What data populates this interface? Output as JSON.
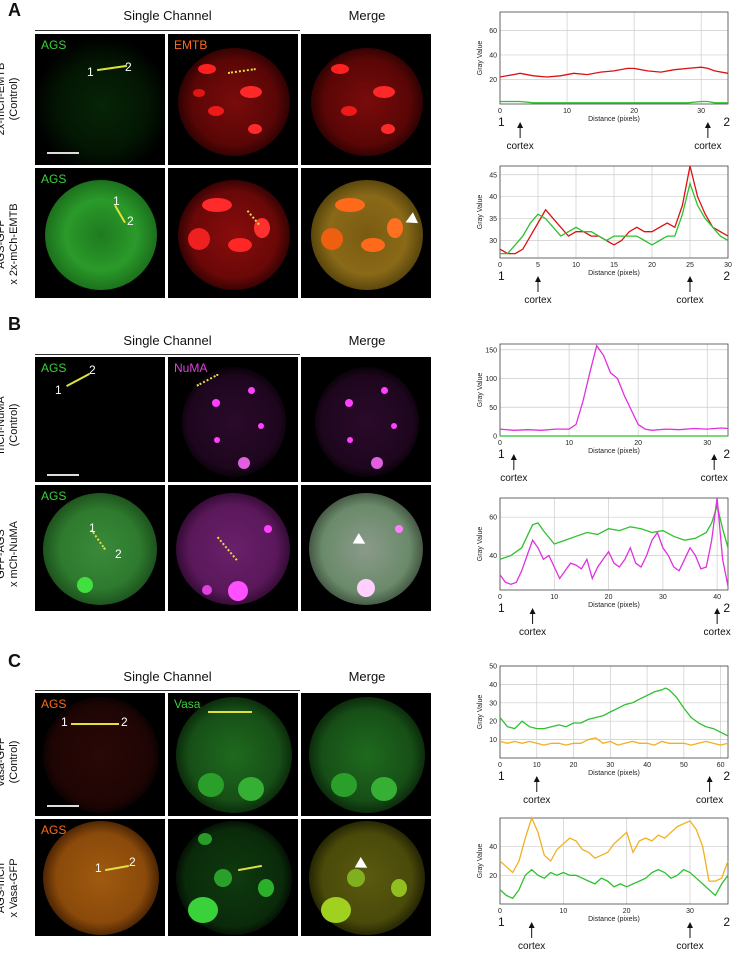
{
  "panels": [
    {
      "letter": "A",
      "single_channel": "Single Channel",
      "merge": "Merge",
      "channels": [
        {
          "label": "AGS",
          "color": "#3ad23a"
        },
        {
          "label": "EMTB",
          "color": "#ff6a1a"
        }
      ],
      "rows": [
        {
          "side_label": [
            "2x-mCh-EMTB",
            "(Control)"
          ]
        },
        {
          "side_label": [
            "AGS-GFP",
            "x 2x-mCh-EMTB"
          ]
        }
      ]
    },
    {
      "letter": "B",
      "single_channel": "Single Channel",
      "merge": "Merge",
      "channels": [
        {
          "label": "AGS",
          "color": "#3ad23a"
        },
        {
          "label": "NuMA",
          "color": "#e040e0"
        }
      ],
      "rows": [
        {
          "side_label": [
            "mCh-NuMA",
            "(Control)"
          ]
        },
        {
          "side_label": [
            "GFP-AGS",
            "x mCh-NuMA"
          ]
        }
      ]
    },
    {
      "letter": "C",
      "single_channel": "Single Channel",
      "merge": "Merge",
      "channels": [
        {
          "label": "AGS",
          "color": "#ff6a1a"
        },
        {
          "label": "Vasa",
          "color": "#3ad23a"
        }
      ],
      "rows": [
        {
          "side_label": [
            "Vasa-GFP",
            "(Control)"
          ]
        },
        {
          "side_label": [
            "AGS-mCh",
            "x Vasa-GFP"
          ]
        }
      ]
    }
  ],
  "line_endpoints": {
    "start": "1",
    "end": "2"
  },
  "cortex_label": "cortex",
  "chart_data": [
    {
      "type": "line",
      "ylabel": "Gray Value",
      "xlabel": "Distance (pixels)",
      "xlim": [
        0,
        34
      ],
      "ylim": [
        0,
        75
      ],
      "xticks": [
        0,
        10,
        20,
        30
      ],
      "yticks": [
        20,
        40,
        60
      ],
      "cortex_x": [
        3,
        31
      ],
      "series": [
        {
          "color": "#dd1111",
          "x": [
            0,
            2,
            3,
            5,
            7,
            9,
            11,
            13,
            15,
            17,
            19,
            20,
            22,
            24,
            26,
            28,
            30,
            31,
            32,
            34
          ],
          "y": [
            22,
            24,
            25,
            23,
            22,
            23,
            25,
            24,
            26,
            27,
            29,
            29,
            27,
            26,
            28,
            29,
            30,
            29,
            27,
            25
          ]
        },
        {
          "color": "#2fc02f",
          "x": [
            0,
            2,
            3,
            5,
            8,
            12,
            16,
            20,
            24,
            28,
            30,
            31,
            32,
            34
          ],
          "y": [
            2,
            2,
            2,
            1,
            1,
            1,
            1,
            1,
            1,
            1,
            2,
            2,
            1,
            1
          ]
        }
      ]
    },
    {
      "type": "line",
      "ylabel": "Gray Value",
      "xlabel": "Distance (pixels)",
      "xlim": [
        0,
        30
      ],
      "ylim": [
        26,
        47
      ],
      "xticks": [
        0,
        5,
        10,
        15,
        20,
        25,
        30
      ],
      "yticks": [
        30,
        35,
        40,
        45
      ],
      "cortex_x": [
        5,
        25
      ],
      "series": [
        {
          "color": "#dd1111",
          "x": [
            0,
            1,
            2,
            3,
            4,
            5,
            6,
            7,
            8,
            9,
            10,
            11,
            12,
            13,
            14,
            15,
            16,
            17,
            18,
            19,
            20,
            21,
            22,
            23,
            24,
            25,
            26,
            27,
            28,
            29,
            30
          ],
          "y": [
            28,
            27,
            27,
            28,
            31,
            34,
            37,
            35,
            33,
            31,
            32,
            32,
            31,
            31,
            30,
            29,
            30,
            32,
            33,
            32,
            32,
            33,
            34,
            33,
            38,
            47,
            40,
            36,
            33,
            32,
            31
          ]
        },
        {
          "color": "#2fc02f",
          "x": [
            0,
            1,
            2,
            3,
            4,
            5,
            6,
            7,
            8,
            9,
            10,
            11,
            12,
            13,
            14,
            15,
            16,
            17,
            18,
            19,
            20,
            21,
            22,
            23,
            24,
            25,
            26,
            27,
            28,
            29,
            30
          ],
          "y": [
            27,
            27,
            29,
            31,
            34,
            36,
            35,
            33,
            31,
            32,
            33,
            32,
            32,
            31,
            30,
            31,
            31,
            31,
            31,
            30,
            29,
            30,
            31,
            31,
            36,
            43,
            38,
            35,
            33,
            31,
            30
          ]
        }
      ]
    },
    {
      "type": "line",
      "ylabel": "Gray Value",
      "xlabel": "Distance (pixels)",
      "xlim": [
        0,
        33
      ],
      "ylim": [
        0,
        160
      ],
      "xticks": [
        0,
        10,
        20,
        30
      ],
      "yticks": [
        0,
        50,
        100,
        150
      ],
      "cortex_x": [
        2,
        31
      ],
      "series": [
        {
          "color": "#e030e0",
          "x": [
            0,
            2,
            4,
            6,
            8,
            10,
            11,
            12,
            13,
            14,
            15,
            16,
            17,
            18,
            19,
            20,
            21,
            22,
            24,
            26,
            28,
            30,
            32,
            33
          ],
          "y": [
            12,
            10,
            11,
            10,
            12,
            12,
            20,
            60,
            110,
            157,
            140,
            110,
            100,
            70,
            45,
            20,
            12,
            10,
            12,
            11,
            13,
            12,
            14,
            13
          ]
        },
        {
          "color": "#2fc02f",
          "x": [
            0,
            5,
            10,
            15,
            20,
            25,
            30,
            33
          ],
          "y": [
            0,
            0,
            0,
            0,
            0,
            0,
            0,
            0
          ]
        }
      ]
    },
    {
      "type": "line",
      "ylabel": "Gray Value",
      "xlabel": "Distance (pixels)",
      "xlim": [
        0,
        42
      ],
      "ylim": [
        22,
        70
      ],
      "xticks": [
        0,
        10,
        20,
        30,
        40
      ],
      "yticks": [
        40,
        60
      ],
      "cortex_x": [
        6,
        40
      ],
      "series": [
        {
          "color": "#2fc02f",
          "x": [
            0,
            2,
            4,
            5,
            6,
            7,
            8,
            10,
            12,
            14,
            16,
            18,
            20,
            22,
            24,
            26,
            28,
            30,
            32,
            34,
            36,
            38,
            39,
            40,
            41,
            42
          ],
          "y": [
            38,
            40,
            44,
            50,
            56,
            57,
            53,
            46,
            48,
            50,
            52,
            51,
            54,
            53,
            55,
            54,
            52,
            53,
            50,
            48,
            49,
            52,
            57,
            66,
            54,
            44
          ]
        },
        {
          "color": "#e030e0",
          "x": [
            0,
            1,
            2,
            3,
            4,
            5,
            6,
            7,
            8,
            9,
            10,
            11,
            12,
            13,
            14,
            15,
            16,
            17,
            18,
            19,
            20,
            21,
            22,
            23,
            24,
            25,
            26,
            27,
            28,
            29,
            30,
            31,
            32,
            33,
            34,
            35,
            36,
            37,
            38,
            39,
            40,
            41,
            42
          ],
          "y": [
            30,
            26,
            25,
            26,
            32,
            40,
            48,
            44,
            38,
            40,
            34,
            28,
            32,
            36,
            35,
            33,
            38,
            28,
            34,
            38,
            42,
            36,
            34,
            38,
            44,
            36,
            34,
            40,
            48,
            52,
            44,
            40,
            34,
            32,
            38,
            44,
            40,
            33,
            34,
            48,
            70,
            38,
            24
          ]
        }
      ]
    },
    {
      "type": "line",
      "ylabel": "Gray Value",
      "xlabel": "Distance (pixels)",
      "xlim": [
        0,
        62
      ],
      "ylim": [
        0,
        50
      ],
      "xticks": [
        0,
        10,
        20,
        30,
        40,
        50,
        60
      ],
      "yticks": [
        10,
        20,
        30,
        40,
        50
      ],
      "cortex_x": [
        10,
        57
      ],
      "series": [
        {
          "color": "#2fc02f",
          "x": [
            0,
            2,
            4,
            6,
            8,
            10,
            12,
            14,
            16,
            18,
            20,
            22,
            24,
            26,
            28,
            30,
            32,
            34,
            36,
            38,
            40,
            42,
            44,
            45,
            46,
            48,
            50,
            52,
            54,
            56,
            58,
            60,
            62
          ],
          "y": [
            22,
            17,
            16,
            20,
            17,
            16,
            16,
            17,
            18,
            17,
            19,
            19,
            21,
            22,
            23,
            25,
            27,
            29,
            30,
            32,
            34,
            36,
            37,
            38,
            37,
            33,
            27,
            22,
            19,
            17,
            16,
            14,
            12
          ]
        },
        {
          "color": "#f0b020",
          "x": [
            0,
            2,
            4,
            6,
            8,
            10,
            12,
            14,
            16,
            18,
            20,
            22,
            24,
            26,
            28,
            30,
            32,
            34,
            36,
            38,
            40,
            42,
            44,
            46,
            48,
            50,
            52,
            54,
            56,
            58,
            60,
            62
          ],
          "y": [
            9,
            8,
            9,
            8,
            9,
            8,
            7,
            8,
            8,
            7,
            8,
            8,
            10,
            11,
            8,
            9,
            7,
            8,
            9,
            8,
            8,
            7,
            9,
            8,
            8,
            8,
            7,
            8,
            9,
            8,
            7,
            8
          ]
        }
      ]
    },
    {
      "type": "line",
      "ylabel": "Gray Value",
      "xlabel": "Distance (pixels)",
      "xlim": [
        0,
        36
      ],
      "ylim": [
        0,
        60
      ],
      "xticks": [
        0,
        10,
        20,
        30
      ],
      "yticks": [
        20,
        40
      ],
      "cortex_x": [
        5,
        30
      ],
      "series": [
        {
          "color": "#f0b020",
          "x": [
            0,
            1,
            2,
            3,
            4,
            5,
            6,
            7,
            8,
            9,
            10,
            11,
            12,
            13,
            14,
            15,
            16,
            17,
            18,
            19,
            20,
            21,
            22,
            23,
            24,
            25,
            26,
            27,
            28,
            29,
            30,
            31,
            32,
            33,
            34,
            35,
            36
          ],
          "y": [
            30,
            26,
            22,
            30,
            46,
            60,
            50,
            34,
            30,
            38,
            42,
            46,
            44,
            38,
            36,
            32,
            34,
            36,
            42,
            46,
            50,
            36,
            44,
            46,
            44,
            48,
            46,
            50,
            54,
            56,
            58,
            52,
            40,
            16,
            16,
            18,
            30
          ]
        },
        {
          "color": "#2fc02f",
          "x": [
            0,
            1,
            2,
            3,
            4,
            5,
            6,
            7,
            8,
            9,
            10,
            11,
            12,
            13,
            14,
            15,
            16,
            17,
            18,
            19,
            20,
            21,
            22,
            23,
            24,
            25,
            26,
            27,
            28,
            29,
            30,
            31,
            32,
            33,
            34,
            35,
            36
          ],
          "y": [
            10,
            6,
            4,
            10,
            20,
            24,
            20,
            18,
            22,
            20,
            22,
            20,
            20,
            18,
            16,
            14,
            18,
            16,
            12,
            14,
            12,
            14,
            16,
            18,
            22,
            24,
            22,
            18,
            20,
            24,
            22,
            18,
            14,
            10,
            6,
            14,
            20
          ]
        }
      ]
    }
  ]
}
